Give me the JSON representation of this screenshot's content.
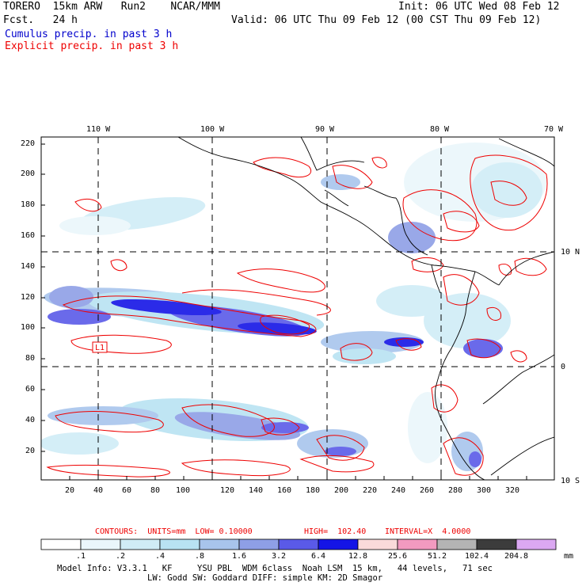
{
  "header": {
    "model_line": "TORERO  15km ARW   Run2    NCAR/MMM",
    "init_line": "Init: 06 UTC Wed 08 Feb 12",
    "fcst_line": "Fcst.   24 h",
    "valid_line": "Valid: 06 UTC Thu 09 Feb 12 (00 CST Thu 09 Feb 12)",
    "cumulus_label": "Cumulus precip. in past 3 h",
    "explicit_label": "Explicit precip. in past 3 h"
  },
  "colors": {
    "cumulus": "#0000cc",
    "explicit": "#ee0000",
    "contour": "#ee0000",
    "grid": "#000000"
  },
  "map": {
    "lon_labels": [
      "110 W",
      "100 W",
      "90 W",
      "80 W",
      "70 W"
    ],
    "lat_labels": [
      "10 N",
      "0",
      "10 S"
    ],
    "y_ticks": [
      "220",
      "200",
      "180",
      "160",
      "140",
      "120",
      "100",
      "80",
      "60",
      "40",
      "20"
    ],
    "x_ticks": [
      "20",
      "40",
      "60",
      "80",
      "100",
      "120",
      "140",
      "160",
      "180",
      "200",
      "220",
      "240",
      "260",
      "280",
      "300",
      "320"
    ],
    "station_marker": "L1"
  },
  "contour_info": {
    "units": "CONTOURS:  UNITS=mm  LOW= 0.10000",
    "high": "HIGH=  102.40",
    "interval": "INTERVAL=X  4.0000"
  },
  "colorbar": {
    "unit": "mm",
    "labels": [
      ".1",
      ".2",
      ".4",
      ".8",
      "1.6",
      "3.2",
      "6.4",
      "12.8",
      "25.6",
      "51.2",
      "102.4",
      "204.8"
    ],
    "colors": [
      "#ffffff",
      "#eaf6fb",
      "#d0ecf6",
      "#b8e2f2",
      "#a8c4ec",
      "#8e9fe6",
      "#5a5ae8",
      "#1414e6",
      "#fadada",
      "#f29ac0",
      "#b4b4b4",
      "#3c3c3c",
      "#dba8f2"
    ]
  },
  "footer": {
    "line1": "Model Info: V3.3.1   KF     YSU PBL  WDM 6class  Noah LSM  15 km,   44 levels,   71 sec",
    "line2": "LW: Godd SW: Goddard DIFF: simple KM: 2D Smagor"
  }
}
